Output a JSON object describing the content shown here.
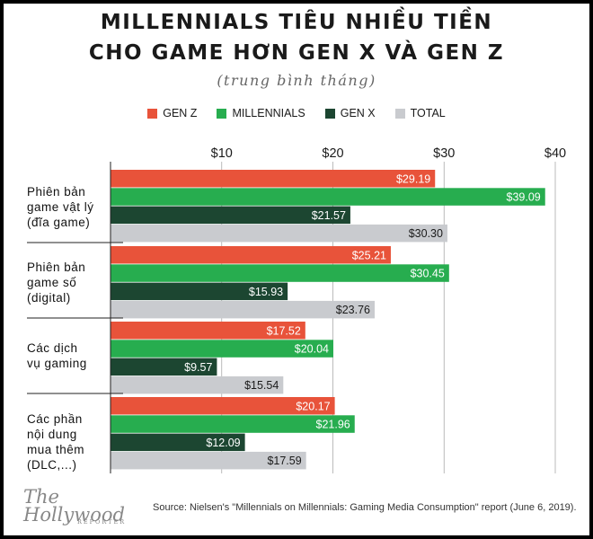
{
  "chart_data": {
    "type": "bar",
    "orientation": "horizontal",
    "title": "MILLENNIALS TIÊU NHIỀU TIỀN CHO GAME HƠN GEN X VÀ GEN Z",
    "title_line1": "MILLENNIALS TIÊU NHIỀU TIỀN",
    "title_line2": "CHO GAME HƠN GEN X VÀ GEN Z",
    "subtitle": "(trung bình tháng)",
    "categories": [
      "Phiên bản game vật lý (đĩa game)",
      "Phiên bản game số (digital)",
      "Các dịch vụ gaming",
      "Các phần nội dung mua thêm (DLC,...)"
    ],
    "category_lines": [
      [
        "Phiên bản",
        "game vật lý",
        "(đĩa game)"
      ],
      [
        "Phiên bản",
        "game số",
        "(digital)"
      ],
      [
        "Các dịch",
        "vụ gaming"
      ],
      [
        "Các phần",
        "nội dung",
        "mua thêm",
        "(DLC,...)"
      ]
    ],
    "series": [
      {
        "name": "GEN Z",
        "color": "#e8533a",
        "values": [
          29.19,
          25.21,
          17.52,
          20.17
        ],
        "labels": [
          "$29.19",
          "$25.21",
          "$17.52",
          "$20.17"
        ]
      },
      {
        "name": "MILLENNIALS",
        "color": "#27ad4f",
        "values": [
          39.09,
          30.45,
          20.04,
          21.96
        ],
        "labels": [
          "$39.09",
          "$30.45",
          "$20.04",
          "$21.96"
        ]
      },
      {
        "name": "GEN X",
        "color": "#1c4631",
        "values": [
          21.57,
          15.93,
          9.57,
          12.09
        ],
        "labels": [
          "$21.57",
          "$15.93",
          "$9.57",
          "$12.09"
        ]
      },
      {
        "name": "TOTAL",
        "color": "#c9cbcf",
        "values": [
          30.3,
          23.76,
          15.54,
          17.59
        ],
        "labels": [
          "$30.30",
          "$23.76",
          "$15.54",
          "$17.59"
        ]
      }
    ],
    "xlim": [
      0,
      40
    ],
    "xticks": [
      10,
      20,
      30,
      40
    ],
    "xtick_labels": [
      "$10",
      "$20",
      "$30",
      "$40"
    ],
    "grid": true,
    "legend_position": "top-center"
  },
  "footer": {
    "logo_main": "The Hollywood",
    "logo_sub": "REPORTER",
    "source": "Source: Nielsen's \"Millennials on Millennials: Gaming Media Consumption\" report (June 6, 2019)."
  }
}
